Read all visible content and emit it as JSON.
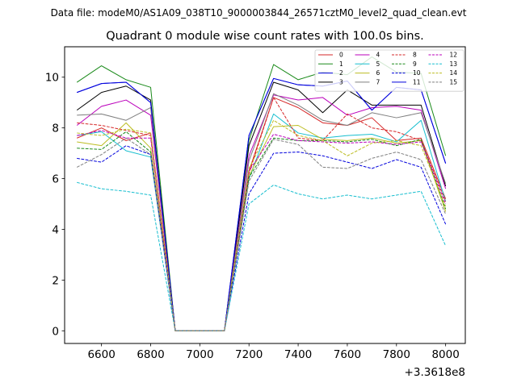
{
  "figure": {
    "suptitle": "Data file: modeM0/AS1A09_038T10_9000003844_26571cztM0_level2_quad_clean.evt"
  },
  "chart_data": {
    "type": "line",
    "title": "Quadrant 0 module wise count rates with 100.0s bins.",
    "xlabel": "",
    "ylabel": "",
    "x_offset_label": "+3.3618e8",
    "xlim": [
      6450,
      8080
    ],
    "ylim": [
      -0.5,
      11.2
    ],
    "x_ticks": [
      6600,
      6800,
      7000,
      7200,
      7400,
      7600,
      7800,
      8000
    ],
    "x_tick_labels": [
      "6600",
      "6800",
      "7000",
      "7200",
      "7400",
      "7600",
      "7800",
      "8000"
    ],
    "y_ticks": [
      0,
      2,
      4,
      6,
      8,
      10
    ],
    "y_tick_labels": [
      "0",
      "2",
      "4",
      "6",
      "8",
      "10"
    ],
    "grid": false,
    "legend_position": "top-right",
    "legend_columns": 4,
    "x": [
      6500,
      6600,
      6700,
      6800,
      6900,
      7000,
      7100,
      7200,
      7300,
      7400,
      7500,
      7600,
      7700,
      7800,
      7900,
      8000
    ],
    "series": [
      {
        "name": "0",
        "color": "#d62728",
        "dashed": false,
        "values": [
          7.6,
          8.0,
          7.5,
          7.8,
          0,
          0,
          0,
          6.3,
          9.2,
          8.8,
          8.2,
          8.1,
          8.4,
          7.5,
          7.6,
          5.2
        ]
      },
      {
        "name": "1",
        "color": "#1a8a1a",
        "dashed": false,
        "values": [
          9.8,
          10.45,
          9.9,
          9.6,
          0,
          0,
          0,
          7.5,
          10.5,
          9.9,
          10.2,
          10.1,
          10.8,
          10.2,
          10.15,
          6.9
        ]
      },
      {
        "name": "2",
        "color": "#0000dd",
        "dashed": false,
        "values": [
          9.4,
          9.75,
          9.8,
          9.0,
          0,
          0,
          0,
          7.7,
          9.95,
          9.7,
          9.65,
          9.85,
          8.7,
          9.6,
          9.5,
          6.6
        ]
      },
      {
        "name": "3",
        "color": "#000000",
        "dashed": false,
        "values": [
          8.7,
          9.4,
          9.65,
          9.1,
          0,
          0,
          0,
          7.3,
          9.8,
          9.5,
          8.6,
          9.5,
          8.9,
          8.9,
          8.9,
          5.7
        ]
      },
      {
        "name": "4",
        "color": "#bb00bb",
        "dashed": false,
        "values": [
          8.1,
          8.85,
          9.1,
          8.5,
          0,
          0,
          0,
          6.9,
          9.3,
          9.1,
          9.2,
          8.5,
          8.8,
          8.85,
          8.7,
          5.6
        ]
      },
      {
        "name": "5",
        "color": "#17becf",
        "dashed": false,
        "values": [
          7.7,
          7.85,
          7.1,
          6.85,
          0,
          0,
          0,
          6.0,
          8.55,
          7.8,
          7.6,
          7.7,
          7.75,
          7.45,
          8.3,
          5.1
        ]
      },
      {
        "name": "6",
        "color": "#bcbd22",
        "dashed": false,
        "values": [
          7.45,
          7.3,
          8.2,
          7.2,
          0,
          0,
          0,
          6.1,
          8.05,
          8.1,
          7.55,
          7.5,
          7.6,
          7.4,
          7.5,
          4.7
        ]
      },
      {
        "name": "7",
        "color": "#7f7f7f",
        "dashed": false,
        "values": [
          8.5,
          8.55,
          8.3,
          8.8,
          0,
          0,
          0,
          6.7,
          9.35,
          8.9,
          8.3,
          8.1,
          8.6,
          8.4,
          8.6,
          5.8
        ]
      },
      {
        "name": "8",
        "color": "#d62728",
        "dashed": true,
        "values": [
          8.2,
          8.1,
          7.9,
          7.7,
          0,
          0,
          0,
          6.2,
          9.2,
          7.6,
          7.5,
          8.55,
          8.0,
          7.85,
          7.5,
          5.1
        ]
      },
      {
        "name": "9",
        "color": "#1a8a1a",
        "dashed": true,
        "values": [
          7.2,
          7.15,
          7.85,
          7.05,
          0,
          0,
          0,
          6.05,
          7.6,
          7.5,
          7.5,
          7.45,
          7.55,
          7.3,
          7.55,
          4.8
        ]
      },
      {
        "name": "10",
        "color": "#0000dd",
        "dashed": true,
        "values": [
          6.8,
          6.65,
          7.3,
          6.95,
          0,
          0,
          0,
          5.4,
          7.0,
          7.05,
          6.9,
          6.65,
          6.4,
          6.75,
          6.45,
          4.2
        ]
      },
      {
        "name": "11",
        "color": "#0000dd",
        "dashed": false,
        "values": [
          9.4,
          9.75,
          9.8,
          9.0,
          0,
          0,
          0,
          7.7,
          9.95,
          9.7,
          9.65,
          9.85,
          8.7,
          9.6,
          9.5,
          6.6
        ]
      },
      {
        "name": "12",
        "color": "#bb00bb",
        "dashed": true,
        "values": [
          7.7,
          7.9,
          7.6,
          7.6,
          0,
          0,
          0,
          6.3,
          7.75,
          7.5,
          7.45,
          7.4,
          7.45,
          7.35,
          7.45,
          5.0
        ]
      },
      {
        "name": "13",
        "color": "#17becf",
        "dashed": true,
        "values": [
          5.85,
          5.6,
          5.5,
          5.35,
          0,
          0,
          0,
          5.0,
          5.75,
          5.4,
          5.2,
          5.35,
          5.2,
          5.35,
          5.5,
          3.35
        ]
      },
      {
        "name": "14",
        "color": "#bcbd22",
        "dashed": true,
        "values": [
          7.8,
          7.7,
          7.95,
          7.8,
          0,
          0,
          0,
          6.4,
          8.3,
          7.7,
          7.5,
          6.9,
          7.4,
          7.5,
          7.3,
          4.9
        ]
      },
      {
        "name": "15",
        "color": "#7f7f7f",
        "dashed": true,
        "values": [
          6.45,
          6.95,
          7.6,
          6.95,
          0,
          0,
          0,
          5.9,
          7.55,
          7.35,
          6.45,
          6.4,
          6.8,
          7.05,
          6.75,
          4.6
        ]
      }
    ]
  }
}
